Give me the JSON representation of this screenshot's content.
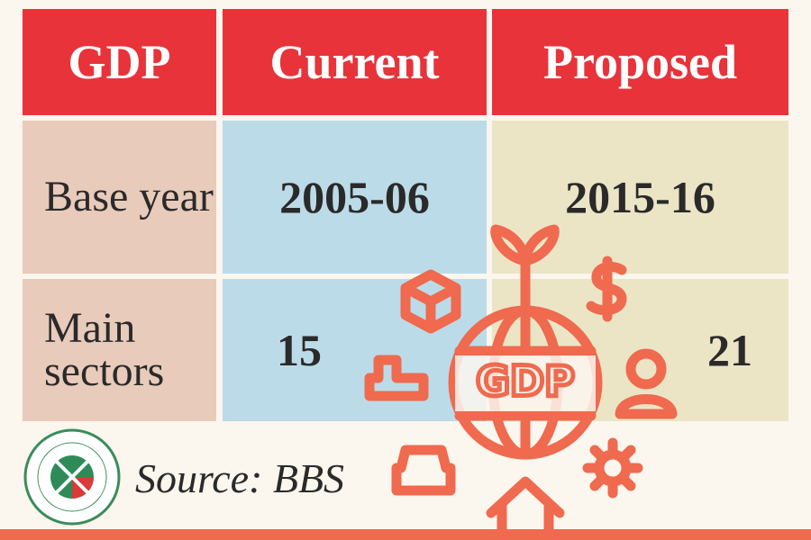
{
  "table": {
    "header": [
      "GDP",
      "Current",
      "Proposed"
    ],
    "rows": [
      [
        "Base year",
        "2005-06",
        "2015-16"
      ],
      [
        "Main sectors",
        "15",
        "21"
      ]
    ]
  },
  "source": "Source: BBS",
  "icon": {
    "label": "GDP"
  }
}
